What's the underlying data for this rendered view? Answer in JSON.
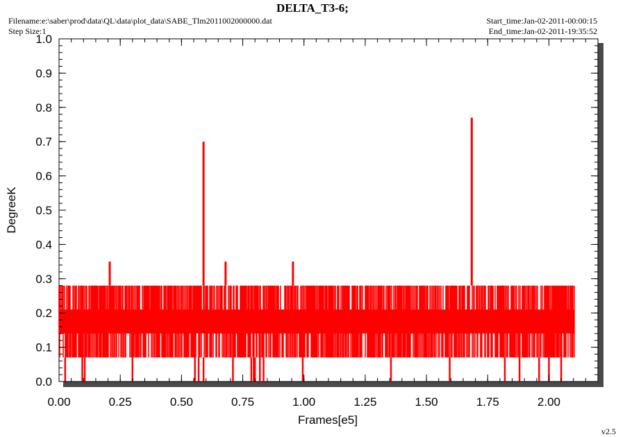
{
  "header": {
    "title": "DELTA_T3-6;",
    "filename": "Filename:e:\\saber\\prod\\data\\QL\\data\\plot_data\\SABE_Tlm2011002000000.dat",
    "step_size": "Step Size:1",
    "start_time": "Start_time:Jan-02-2011-00:00:15",
    "end_time": "End_time:Jan-02-2011-19:35:52"
  },
  "version": "v2.5",
  "colors": {
    "series": "#ff0000",
    "frame_shadow": "#4a4a4a",
    "axis": "#000000",
    "background": "#ffffff"
  },
  "chart_data": {
    "type": "line",
    "title": "DELTA_T3-6;",
    "xlabel": "Frames[e5]",
    "ylabel": "DegreeK",
    "xlim": [
      0.0,
      2.2
    ],
    "ylim": [
      0.0,
      1.0
    ],
    "x_tick_values": [
      0.0,
      0.25,
      0.5,
      0.75,
      1.0,
      1.25,
      1.5,
      1.75,
      2.0
    ],
    "x_tick_labels": [
      "0.00",
      "0.25",
      "0.50",
      "0.75",
      "1.00",
      "1.25",
      "1.50",
      "1.75",
      "2.00"
    ],
    "y_tick_values": [
      0.0,
      0.1,
      0.2,
      0.3,
      0.4,
      0.5,
      0.6,
      0.7,
      0.8,
      0.9,
      1.0
    ],
    "y_tick_labels": [
      "0.0",
      "0.1",
      "0.2",
      "0.3",
      "0.4",
      "0.5",
      "0.6",
      "0.7",
      "0.8",
      "0.9",
      "1.0"
    ],
    "grid": false,
    "series": [
      {
        "x_range": [
          0.0,
          2.105
        ],
        "dense_band": {
          "levels": [
            0.07,
            0.14,
            0.21,
            0.28
          ],
          "typical_range": [
            0.07,
            0.28
          ]
        },
        "spikes": [
          {
            "x": 0.207,
            "y": 0.35
          },
          {
            "x": 0.59,
            "y": 0.7
          },
          {
            "x": 0.68,
            "y": 0.35
          },
          {
            "x": 0.955,
            "y": 0.35
          },
          {
            "x": 1.685,
            "y": 0.77
          }
        ],
        "dips_to_zero": [
          0.025,
          0.095,
          0.105,
          0.3,
          0.555,
          0.57,
          0.59,
          0.71,
          0.785,
          0.795,
          0.8,
          0.82,
          0.835,
          0.995,
          1.355,
          1.595,
          1.82,
          1.88,
          1.96,
          2.0,
          2.05
        ]
      }
    ]
  }
}
